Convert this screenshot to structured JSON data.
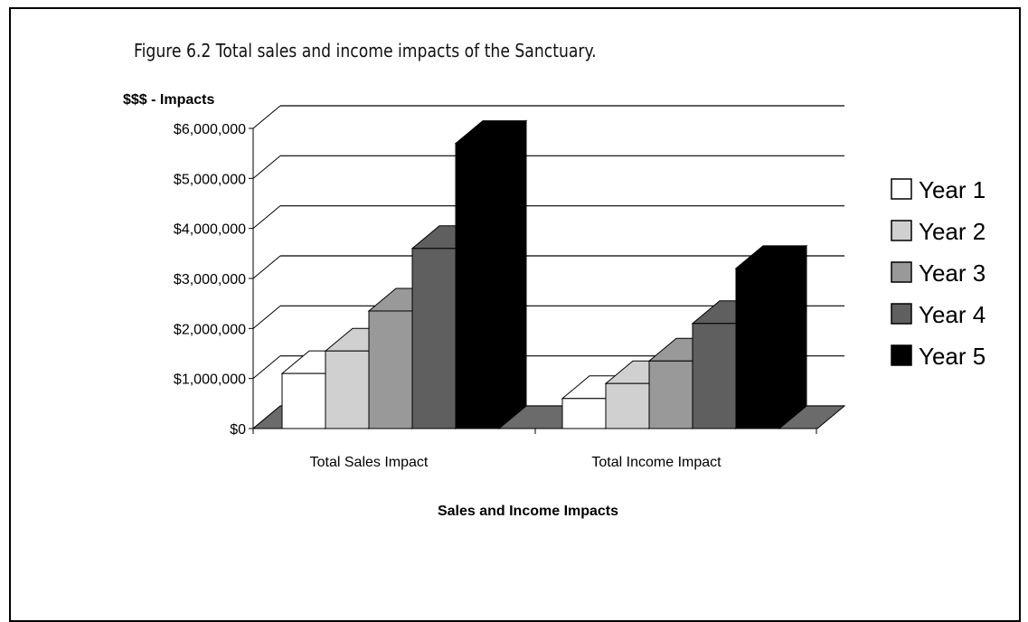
{
  "caption": "Figure 6.2 Total sales and income impacts of the Sanctuary.",
  "chart_data": {
    "type": "bar",
    "title": "",
    "ylabel": "$$$ - Impacts",
    "xlabel": "Sales and Income Impacts",
    "categories": [
      "Total Sales Impact",
      "Total Income Impact"
    ],
    "ylim": [
      0,
      6000000
    ],
    "yticks": [
      "$0",
      "$1,000,000",
      "$2,000,000",
      "$3,000,000",
      "$4,000,000",
      "$5,000,000",
      "$6,000,000"
    ],
    "series": [
      {
        "name": "Year 1",
        "values": [
          1100000,
          600000
        ],
        "color": "#ffffff"
      },
      {
        "name": "Year 2",
        "values": [
          1550000,
          900000
        ],
        "color": "#d0d0d0"
      },
      {
        "name": "Year 3",
        "values": [
          2350000,
          1350000
        ],
        "color": "#999999"
      },
      {
        "name": "Year 4",
        "values": [
          3600000,
          2100000
        ],
        "color": "#5f5f5f"
      },
      {
        "name": "Year 5",
        "values": [
          5700000,
          3200000
        ],
        "color": "#000000"
      }
    ],
    "grid": true,
    "legend": "right"
  }
}
